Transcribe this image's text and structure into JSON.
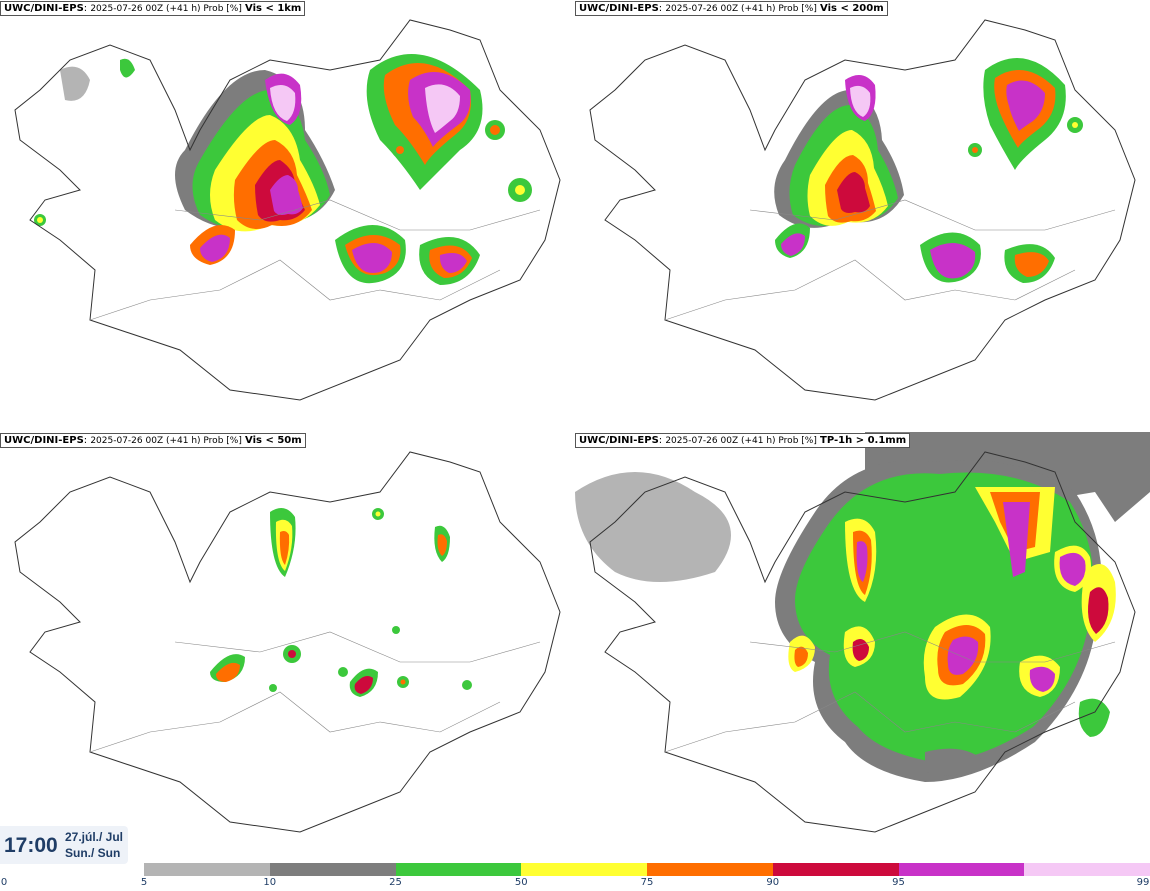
{
  "panels": [
    {
      "model": "UWC/DINI-EPS",
      "meta": "2025-07-26 00Z (+41 h) Prob [%]",
      "param": "Vis < 1km"
    },
    {
      "model": "UWC/DINI-EPS",
      "meta": "2025-07-26 00Z (+41 h) Prob [%]",
      "param": "Vis < 200m"
    },
    {
      "model": "UWC/DINI-EPS",
      "meta": "2025-07-26 00Z (+41 h) Prob [%]",
      "param": "Vis < 50m"
    },
    {
      "model": "UWC/DINI-EPS",
      "meta": "2025-07-26 00Z (+41 h) Prob [%]",
      "param": "TP-1h > 0.1mm"
    }
  ],
  "time": "17:00",
  "date_line1": "27.júl./ Jul",
  "date_line2": "Sun./ Sun",
  "legend": {
    "ticks": [
      "0",
      "5",
      "10",
      "25",
      "50",
      "75",
      "90",
      "95",
      "99"
    ],
    "colors": [
      "#b4b4b4",
      "#7d7d7d",
      "#3cc83c",
      "#ffff32",
      "#ff6e00",
      "#cd0a3c",
      "#c832c8",
      "#f5c8f5"
    ]
  }
}
